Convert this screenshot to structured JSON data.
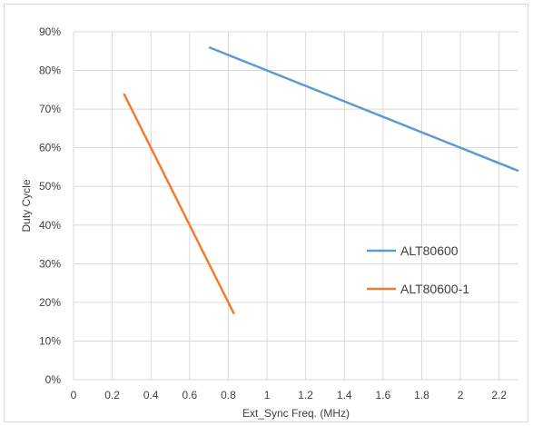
{
  "chart_data": {
    "type": "line",
    "title": "",
    "xlabel": "Ext_Sync Freq. (MHz)",
    "ylabel": "Duty Cycle",
    "xlim": [
      0,
      2.3
    ],
    "ylim": [
      0,
      0.9
    ],
    "x_ticks": [
      0,
      0.2,
      0.4,
      0.6,
      0.8,
      1,
      1.2,
      1.4,
      1.6,
      1.8,
      2,
      2.2
    ],
    "x_tick_labels": [
      "0",
      "0.2",
      "0.4",
      "0.6",
      "0.8",
      "1",
      "1.2",
      "1.4",
      "1.6",
      "1.8",
      "2",
      "2.2"
    ],
    "y_ticks": [
      0,
      0.1,
      0.2,
      0.3,
      0.4,
      0.5,
      0.6,
      0.7,
      0.8,
      0.9
    ],
    "y_tick_labels": [
      "0%",
      "10%",
      "20%",
      "30%",
      "40%",
      "50%",
      "60%",
      "70%",
      "80%",
      "90%"
    ],
    "grid": true,
    "legend_position": "right",
    "series": [
      {
        "name": "ALT80600",
        "color": "#5b9bd5",
        "points": [
          [
            0.7,
            0.86
          ],
          [
            2.3,
            0.54
          ]
        ]
      },
      {
        "name": "ALT80600-1",
        "color": "#ed7d31",
        "points": [
          [
            0.26,
            0.74
          ],
          [
            0.83,
            0.17
          ]
        ]
      }
    ]
  }
}
